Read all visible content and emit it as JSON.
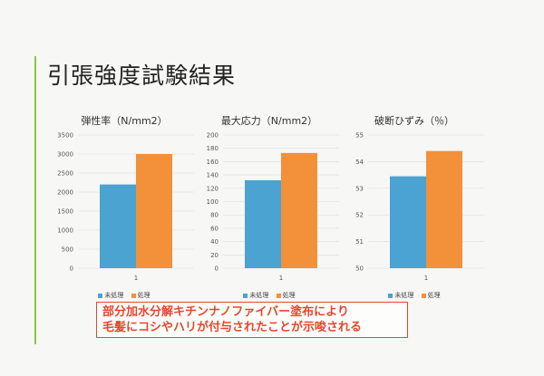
{
  "title": "引張強度試験結果",
  "colors": {
    "untreated": "#4aa3d1",
    "treated": "#f3903a",
    "accent": "#8bc53f",
    "note": "#e8462c"
  },
  "legend": {
    "untreated": "未処理",
    "treated": "処理"
  },
  "chart_data": [
    {
      "type": "bar",
      "title": "弾性率（N/mm2）",
      "categories": [
        "1"
      ],
      "series": [
        {
          "name": "未処理",
          "values": [
            2200
          ]
        },
        {
          "name": "処理",
          "values": [
            3000
          ]
        }
      ],
      "ylim": [
        0,
        3500
      ],
      "yticks": [
        0,
        500,
        1000,
        1500,
        2000,
        2500,
        3000,
        3500
      ]
    },
    {
      "type": "bar",
      "title": "最大応力（N/mm2）",
      "categories": [
        "1"
      ],
      "series": [
        {
          "name": "未処理",
          "values": [
            132
          ]
        },
        {
          "name": "処理",
          "values": [
            173
          ]
        }
      ],
      "ylim": [
        0,
        200
      ],
      "yticks": [
        0,
        20,
        40,
        60,
        80,
        100,
        120,
        140,
        160,
        180,
        200
      ]
    },
    {
      "type": "bar",
      "title": "破断ひずみ（％）",
      "categories": [
        "1"
      ],
      "series": [
        {
          "name": "未処理",
          "values": [
            53.45
          ]
        },
        {
          "name": "処理",
          "values": [
            54.4
          ]
        }
      ],
      "ylim": [
        50,
        55
      ],
      "yticks": [
        50,
        51,
        52,
        53,
        54,
        55
      ]
    }
  ],
  "note": {
    "line1": "部分加水分解キチンナノファイバー塗布により",
    "line2": "毛髪にコシやハリが付与されたことが示唆される"
  }
}
